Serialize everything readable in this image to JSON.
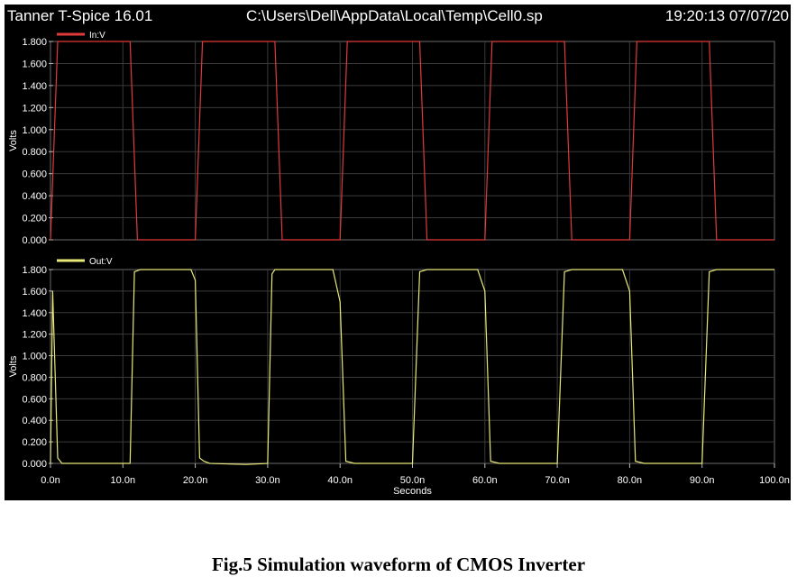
{
  "window": {
    "app_title": "Tanner T-Spice 16.01",
    "file_path": "C:\\Users\\Dell\\AppData\\Local\\Temp\\Cell0.sp",
    "timestamp": "19:20:13 07/07/20"
  },
  "caption": "Fig.5 Simulation waveform of CMOS Inverter",
  "colors": {
    "background": "#000000",
    "grid": "#3a3a3a",
    "input": "#e03a3a",
    "output": "#e8e87a"
  },
  "chart_data": [
    {
      "type": "line",
      "ylabel": "Volts",
      "xlabel": "",
      "ylim": [
        0,
        1.8
      ],
      "xlim": [
        0,
        100
      ],
      "yticks": [
        "0.000",
        "0.200",
        "0.400",
        "0.600",
        "0.800",
        "1.000",
        "1.200",
        "1.400",
        "1.600",
        "1.800"
      ],
      "grid": true,
      "legend_position": "top-left",
      "series": [
        {
          "name": "In:V",
          "color": "#e03a3a",
          "x": [
            0,
            1,
            11,
            12,
            20,
            21,
            31,
            32,
            40,
            41,
            51,
            52,
            60,
            61,
            71,
            72,
            80,
            81,
            91,
            92,
            100
          ],
          "y": [
            0,
            1.8,
            1.8,
            0,
            0,
            1.8,
            1.8,
            0,
            0,
            1.8,
            1.8,
            0,
            0,
            1.8,
            1.8,
            0,
            0,
            1.8,
            1.8,
            0,
            0
          ]
        }
      ]
    },
    {
      "type": "line",
      "ylabel": "Volts",
      "xlabel": "Seconds",
      "ylim": [
        0,
        1.8
      ],
      "xlim": [
        0,
        100
      ],
      "yticks": [
        "0.000",
        "0.200",
        "0.400",
        "0.600",
        "0.800",
        "1.000",
        "1.200",
        "1.400",
        "1.600",
        "1.800"
      ],
      "xticks": [
        "0.0n",
        "10.0n",
        "20.0n",
        "30.0n",
        "40.0n",
        "50.0n",
        "60.0n",
        "70.0n",
        "80.0n",
        "90.0n",
        "100.0n"
      ],
      "grid": true,
      "legend_position": "top-left",
      "series": [
        {
          "name": "Out:V",
          "color": "#e8e87a",
          "x": [
            0,
            0.3,
            1,
            1.6,
            2,
            11,
            11.6,
            12.4,
            19.4,
            20,
            20.6,
            21.2,
            22,
            27,
            30,
            30.6,
            31,
            32,
            39,
            40,
            40.8,
            42,
            47,
            50,
            51,
            52,
            59,
            60,
            60.8,
            62,
            67,
            70,
            71,
            72,
            79,
            80,
            80.8,
            82,
            87,
            90,
            91,
            92,
            100
          ],
          "y": [
            0,
            1.6,
            0.05,
            0.0,
            0.0,
            0.0,
            1.78,
            1.8,
            1.8,
            1.7,
            0.05,
            0.02,
            0.0,
            -0.01,
            0.0,
            1.76,
            1.8,
            1.8,
            1.8,
            1.5,
            0.02,
            0.0,
            0.0,
            0.0,
            1.78,
            1.8,
            1.8,
            1.6,
            0.02,
            0.0,
            0.0,
            0.0,
            1.78,
            1.8,
            1.8,
            1.6,
            0.02,
            0.0,
            0.0,
            0.0,
            1.78,
            1.8,
            1.8
          ]
        }
      ]
    }
  ]
}
